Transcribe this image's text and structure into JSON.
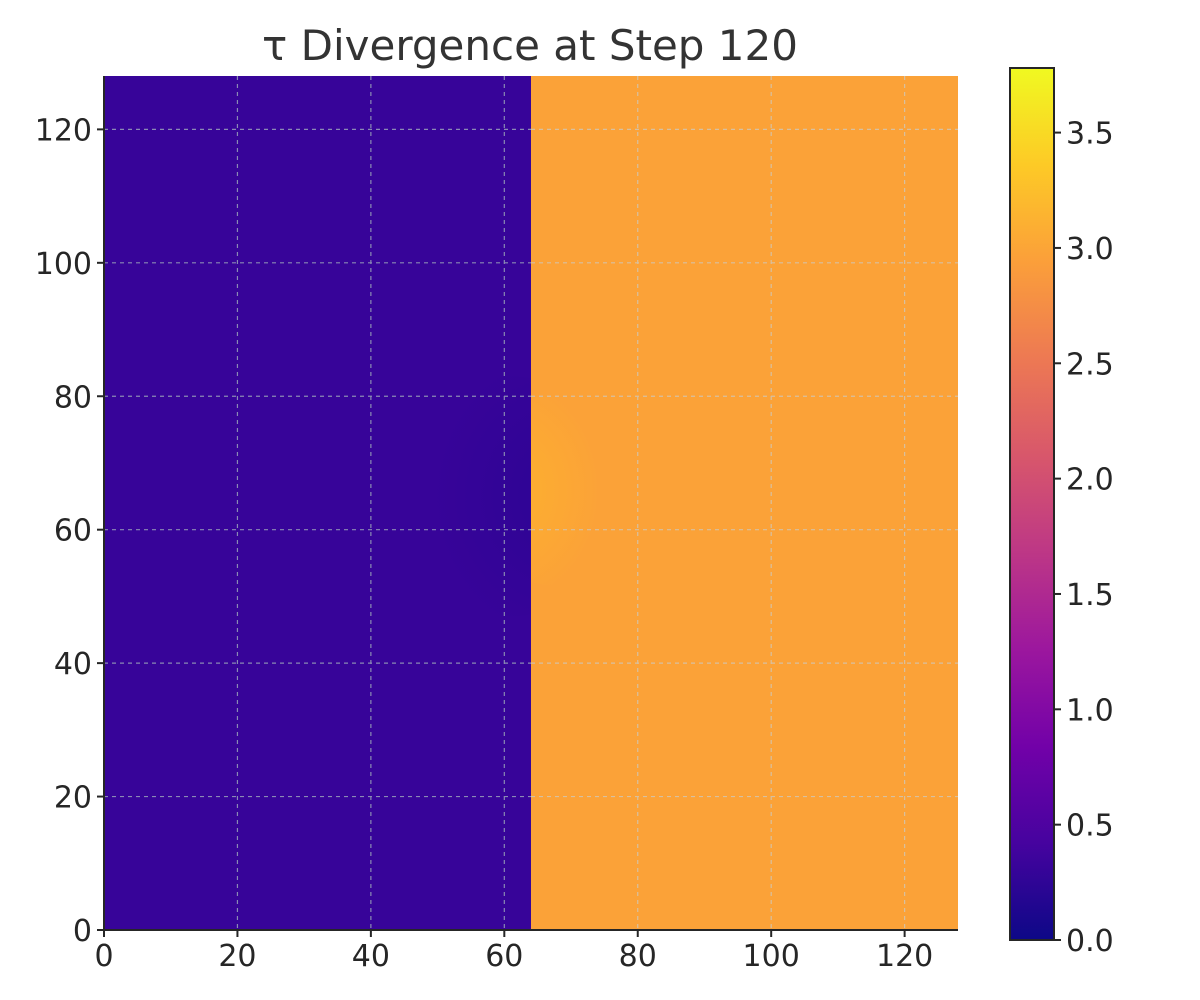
{
  "chart_data": {
    "type": "heatmap",
    "title": "τ Divergence at Step 120",
    "xlabel": "",
    "ylabel": "",
    "xlim": [
      0,
      128
    ],
    "ylim": [
      0,
      128
    ],
    "x_ticks": [
      0,
      20,
      40,
      60,
      80,
      100,
      120
    ],
    "y_ticks": [
      0,
      20,
      40,
      60,
      80,
      100,
      120
    ],
    "grid": true,
    "colormap": "plasma",
    "regions": [
      {
        "x_range": [
          0,
          64
        ],
        "y_range": [
          0,
          128
        ],
        "value": 0.35,
        "color": "#370499"
      },
      {
        "x_range": [
          64,
          128
        ],
        "y_range": [
          0,
          128
        ],
        "value": 3.0,
        "color": "#fba238"
      }
    ],
    "feature": {
      "description": "faint elliptical perturbation at interface",
      "center": [
        66,
        65
      ],
      "left_value": 0.2,
      "right_value": 3.4
    },
    "colorbar": {
      "range": [
        0.0,
        3.78
      ],
      "ticks": [
        0.0,
        0.5,
        1.0,
        1.5,
        2.0,
        2.5,
        3.0,
        3.5
      ],
      "tick_labels": [
        "0.0",
        "0.5",
        "1.0",
        "1.5",
        "2.0",
        "2.5",
        "3.0",
        "3.5"
      ],
      "colors": [
        "#0d0887",
        "#46039f",
        "#7201a8",
        "#9c179e",
        "#bd3786",
        "#d8576b",
        "#ed7953",
        "#fb9f3a",
        "#fdca26",
        "#f0f921"
      ]
    },
    "colors": {
      "left_region": "#370499",
      "right_region": "#fba238",
      "feature_dark": "#2c0494",
      "feature_bright": "#fdb22e",
      "grid_dark": "#8a8ab4",
      "grid_light": "#d8c0a0",
      "axis": "#262626"
    }
  }
}
